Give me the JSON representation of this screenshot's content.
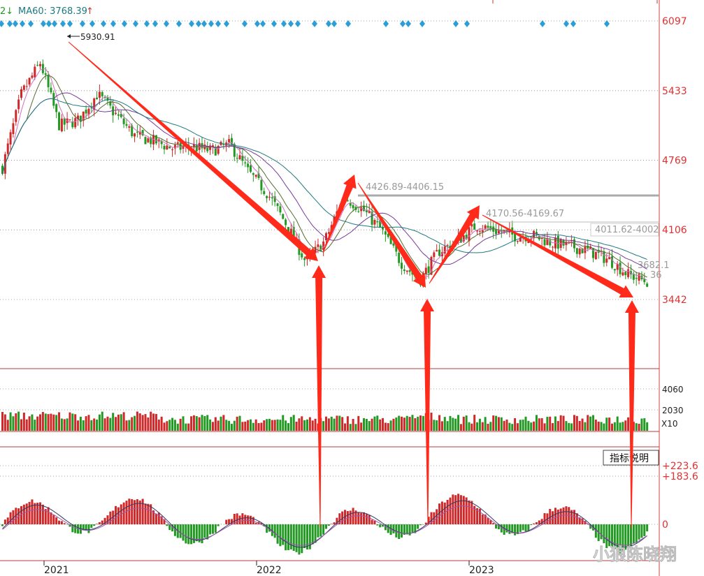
{
  "header": {
    "ma_fragment": "2↓",
    "ma60_label": "MA60: 3768.39",
    "ma60_arrow": "↑"
  },
  "chart_data": [
    {
      "type": "line",
      "panel": "price-candlestick",
      "y_ticks": [
        "6097",
        "5433",
        "4769",
        "4106",
        "3442"
      ],
      "y_tick_values": [
        6097,
        5433,
        4769,
        4106,
        3442
      ],
      "x_ticks": [
        "2021",
        "2022",
        "2023"
      ],
      "grid": true,
      "peak_label": "5930.91",
      "annotations": [
        "4426.89-4406.15",
        "4170.56-4169.67",
        "4011.62-4002",
        "3682.1",
        "36"
      ],
      "approximate_closes": {
        "dates": [
          "2020-12",
          "2021-01",
          "2021-02",
          "2021-03",
          "2021-04",
          "2021-05",
          "2021-06",
          "2021-07",
          "2021-08",
          "2021-09",
          "2021-10",
          "2021-11",
          "2021-12",
          "2022-01",
          "2022-02",
          "2022-03",
          "2022-04",
          "2022-05",
          "2022-06",
          "2022-07",
          "2022-08",
          "2022-09",
          "2022-10",
          "2022-11",
          "2022-12",
          "2023-01",
          "2023-02",
          "2023-03",
          "2023-04",
          "2023-05",
          "2023-06",
          "2023-07",
          "2023-08",
          "2023-09",
          "2023-10"
        ],
        "values": [
          4700,
          5400,
          5700,
          5100,
          5150,
          5400,
          5200,
          5000,
          4950,
          4880,
          4900,
          4860,
          4920,
          4650,
          4450,
          4150,
          3800,
          4000,
          4420,
          4300,
          4100,
          3800,
          3620,
          3900,
          4000,
          4150,
          4100,
          4050,
          4050,
          3980,
          3950,
          3900,
          3820,
          3680,
          3610
        ]
      }
    },
    {
      "type": "bar",
      "panel": "volume",
      "y_ticks": [
        "4060",
        "2030"
      ],
      "y_tick_values": [
        4060,
        2030
      ],
      "unit_label": "X10"
    },
    {
      "type": "bar",
      "panel": "macd",
      "y_ticks": [
        "+223.6",
        "+183.6",
        "0"
      ],
      "y_tick_values": [
        223.6,
        183.6,
        0
      ],
      "button_label": "指标说明"
    }
  ],
  "watermark": "小狼陈晓翔",
  "colors": {
    "up": "#d02828",
    "down": "#229922",
    "axis_label": "#e03030",
    "arrow": "#ff2a1a",
    "diamond": "#2a9ed8",
    "ma_dark": "#1d7a80",
    "ma_purple": "#7a3a9a",
    "ma_pink": "#d070c0",
    "ma_olive": "#556b2f"
  }
}
